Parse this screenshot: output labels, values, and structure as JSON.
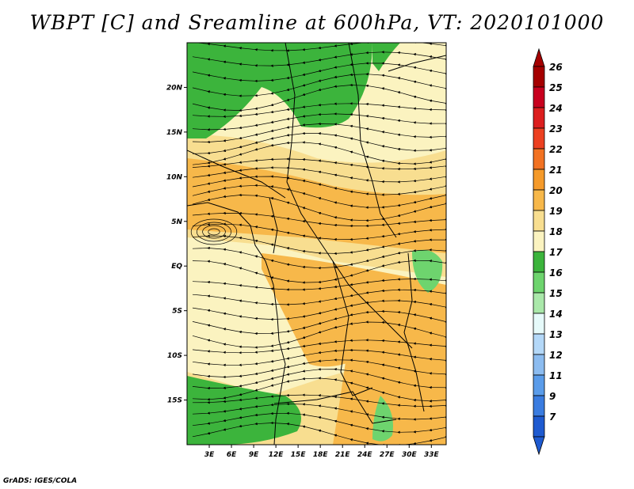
{
  "title": "WBPT [C] and Sreamline at 600hPa, VT: 2020101000",
  "footer": "GrADS: IGES/COLA",
  "map": {
    "lat_labels": [
      "20N",
      "15N",
      "10N",
      "5N",
      "EQ",
      "5S",
      "10S",
      "15S"
    ],
    "lon_labels": [
      "3E",
      "6E",
      "9E",
      "12E",
      "15E",
      "18E",
      "21E",
      "24E",
      "27E",
      "30E",
      "33E"
    ],
    "lat_range": [
      -20,
      25
    ],
    "lon_range": [
      0,
      35
    ]
  },
  "colorbar": {
    "labels": [
      "26",
      "25",
      "24",
      "23",
      "22",
      "21",
      "20",
      "19",
      "18",
      "17",
      "16",
      "15",
      "14",
      "13",
      "12",
      "11",
      "9",
      "7"
    ],
    "colors": [
      "#a50000",
      "#c8001e",
      "#dc1e1e",
      "#ec4020",
      "#f27222",
      "#f59a2a",
      "#f7b84a",
      "#f8de90",
      "#fbf3c0",
      "#3cb43c",
      "#6ed46e",
      "#aae8aa",
      "#e6fafa",
      "#b4d8f8",
      "#8cbcf0",
      "#5a9cea",
      "#3a7ce0",
      "#1e5ad0"
    ],
    "top_arrow_color": "#a50000",
    "bottom_arrow_color": "#1e5ad0"
  },
  "field_colors": {
    "green_dark": "#3cb43c",
    "green_light": "#6ed46e",
    "pale": "#fbf3c0",
    "light_orange": "#f8de90",
    "orange": "#f7b84a",
    "dark_orange": "#f59a2a"
  }
}
